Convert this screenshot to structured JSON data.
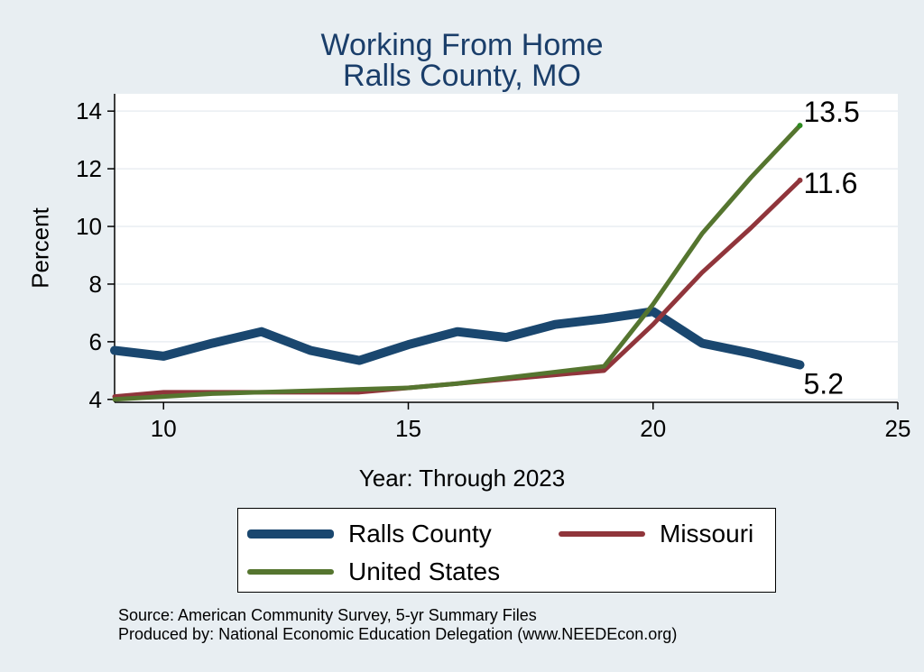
{
  "chart_data": {
    "type": "line",
    "title": [
      "Working From Home",
      "Ralls County, MO"
    ],
    "xlabel": "Year: Through 2023",
    "ylabel": "Percent",
    "xlim": [
      9,
      25
    ],
    "ylim": [
      3.9,
      14.6
    ],
    "xticks": [
      10,
      15,
      20,
      25
    ],
    "yticks": [
      4,
      6,
      8,
      10,
      12,
      14
    ],
    "grid": "horizontal",
    "legend_position": "bottom",
    "x": [
      9,
      10,
      11,
      12,
      13,
      14,
      15,
      16,
      17,
      18,
      19,
      20,
      21,
      22,
      23
    ],
    "series": [
      {
        "name": "Ralls County",
        "color": "#1a476f",
        "values": [
          5.7,
          5.5,
          5.95,
          6.35,
          5.7,
          5.35,
          5.9,
          6.35,
          6.15,
          6.6,
          6.8,
          7.05,
          5.95,
          5.6,
          5.2
        ]
      },
      {
        "name": "Missouri",
        "color": "#90353b",
        "values": [
          4.1,
          4.25,
          4.25,
          4.25,
          4.25,
          4.25,
          4.4,
          4.55,
          4.7,
          4.85,
          5.0,
          6.6,
          8.4,
          9.95,
          11.6
        ]
      },
      {
        "name": "United States",
        "color": "#55752f",
        "values": [
          4.0,
          4.1,
          4.2,
          4.25,
          4.3,
          4.35,
          4.4,
          4.55,
          4.75,
          4.95,
          5.15,
          7.3,
          9.75,
          11.7,
          13.5
        ]
      }
    ],
    "end_labels": [
      {
        "series": "United States",
        "text": "13.5"
      },
      {
        "series": "Missouri",
        "text": "11.6"
      },
      {
        "series": "Ralls County",
        "text": "5.2"
      }
    ]
  },
  "legend": [
    {
      "label": "Ralls County",
      "color": "#1a476f"
    },
    {
      "label": "Missouri",
      "color": "#90353b"
    },
    {
      "label": "United States",
      "color": "#55752f"
    }
  ],
  "footer": {
    "source": "Source: American Community Survey, 5-yr Summary Files",
    "produced_by": "Produced by: National Economic Education Delegation (www.NEEDEcon.org)"
  }
}
